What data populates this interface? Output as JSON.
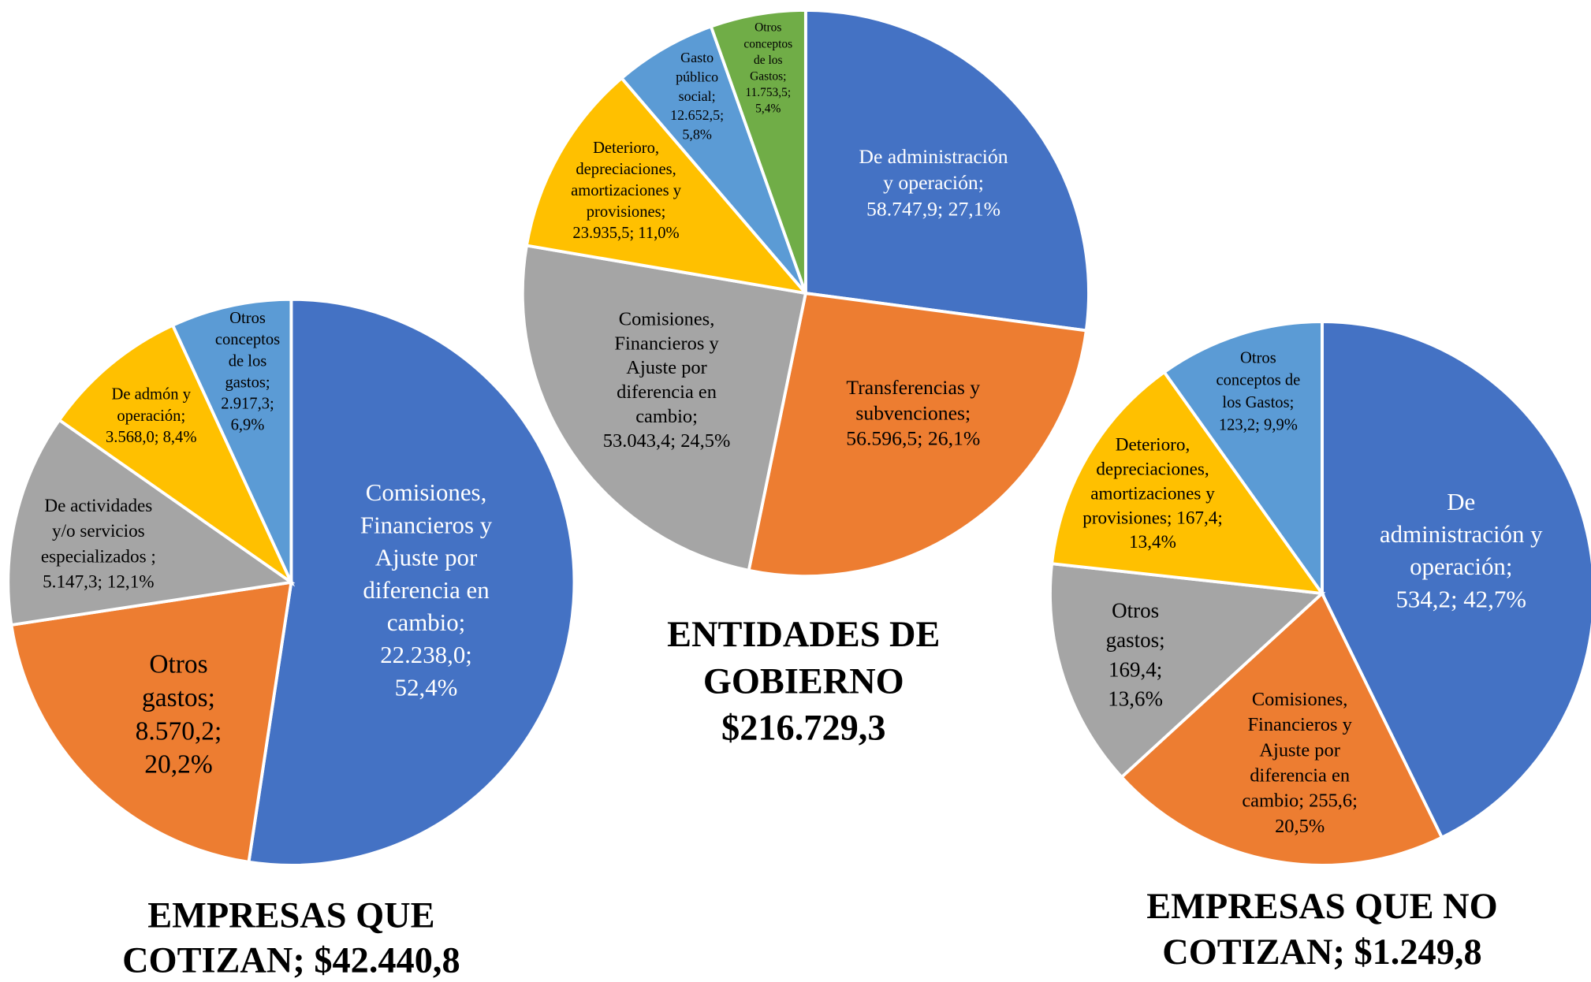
{
  "chart_data": [
    {
      "type": "pie",
      "title": [
        "EMPRESAS QUE",
        "COTIZAN; $42.440,8"
      ],
      "categories": [
        "Comisiones, Financieros y Ajuste por diferencia en cambio",
        "Otros gastos",
        "De actividades y/o servicios especializados",
        "De admón y operación",
        "Otros conceptos de los gastos"
      ],
      "values": [
        22238.0,
        8570.2,
        5147.3,
        3568.0,
        2917.3
      ],
      "value_labels": [
        [
          "Comisiones,",
          "Financieros y",
          "Ajuste por",
          "diferencia en",
          "cambio;",
          "22.238,0;",
          "52,4%"
        ],
        [
          "Otros",
          "gastos;",
          "8.570,2;",
          "20,2%"
        ],
        [
          "De actividades",
          "y/o servicios",
          "especializados  ;",
          "5.147,3; 12,1%"
        ],
        [
          "De admón y",
          "operación;",
          "3.568,0; 8,4%"
        ],
        [
          "Otros",
          "conceptos",
          "de los",
          "gastos;",
          "2.917,3;",
          "6,9%"
        ]
      ],
      "colors": [
        "#4472c4",
        "#ed7d31",
        "#a5a5a5",
        "#ffc000",
        "#5b9bd5"
      ]
    },
    {
      "type": "pie",
      "title": [
        "ENTIDADES DE",
        "GOBIERNO",
        "$216.729,3"
      ],
      "categories": [
        "De administración y operación",
        "Transferencias y subvenciones",
        "Comisiones, Financieros y Ajuste por diferencia en cambio",
        "Deterioro, depreciaciones, amortizaciones y provisiones",
        "Gasto público social",
        "Otros conceptos de los Gastos"
      ],
      "values": [
        58747.9,
        56596.5,
        53043.4,
        23935.5,
        12652.5,
        11753.5
      ],
      "value_labels": [
        [
          "De administración",
          "y operación;",
          "58.747,9;  27,1%"
        ],
        [
          "Transferencias y",
          "subvenciones;",
          "56.596,5; 26,1%"
        ],
        [
          "Comisiones,",
          "Financieros y",
          "Ajuste por",
          "diferencia en",
          "cambio;",
          "53.043,4; 24,5%"
        ],
        [
          "Deterioro,",
          "depreciaciones,",
          "amortizaciones y",
          "provisiones;",
          "23.935,5; 11,0%"
        ],
        [
          "Gasto",
          "público",
          "social;",
          "12.652,5;",
          "5,8%"
        ],
        [
          "Otros",
          "conceptos",
          "de los",
          "Gastos;",
          "11.753,5;",
          "5,4%"
        ]
      ],
      "colors": [
        "#4472c4",
        "#ed7d31",
        "#a5a5a5",
        "#ffc000",
        "#5b9bd5",
        "#70ad47"
      ]
    },
    {
      "type": "pie",
      "title": [
        "EMPRESAS QUE NO",
        "COTIZAN; $1.249,8"
      ],
      "categories": [
        "De administración y operación",
        "Comisiones, Financieros y Ajuste por diferencia en cambio",
        "Otros gastos",
        "Deterioro, depreciaciones, amortizaciones y provisiones",
        "Otros conceptos de los Gastos"
      ],
      "values": [
        534.2,
        255.6,
        169.4,
        167.4,
        123.2
      ],
      "value_labels": [
        [
          "De",
          "administración  y",
          "operación;",
          "534,2;  42,7%"
        ],
        [
          "Comisiones,",
          "Financieros y",
          "Ajuste por",
          "diferencia en",
          "cambio; 255,6;",
          "20,5%"
        ],
        [
          "Otros",
          "gastos;",
          "169,4;",
          "13,6%"
        ],
        [
          "Deterioro,",
          "depreciaciones,",
          "amortizaciones y",
          "provisiones; 167,4;",
          "13,4%"
        ],
        [
          "Otros",
          "conceptos de",
          "los Gastos;",
          "123,2; 9,9%"
        ]
      ],
      "colors": [
        "#4472c4",
        "#ed7d31",
        "#a5a5a5",
        "#ffc000",
        "#5b9bd5"
      ]
    }
  ]
}
